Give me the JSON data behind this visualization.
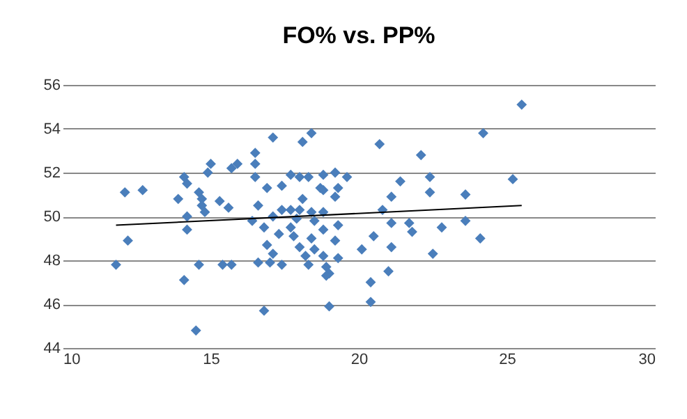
{
  "chart_data": {
    "type": "scatter",
    "title": "FO% vs. PP%",
    "xlim": [
      10,
      30
    ],
    "xticks": [
      10,
      15,
      20,
      25,
      30
    ],
    "ylim": [
      44,
      56
    ],
    "yticks": [
      44,
      46,
      48,
      50,
      52,
      54,
      56
    ],
    "grid": "y",
    "series": [
      {
        "marker": "diamond",
        "color": "#4a7ebb",
        "x": [
          11.8,
          12.1,
          12.7,
          12.2,
          13.9,
          14.1,
          14.2,
          14.2,
          14.2,
          14.1,
          14.5,
          14.6,
          14.7,
          14.7,
          14.8,
          14.6,
          14.9,
          15.0,
          15.3,
          15.6,
          15.4,
          15.7,
          15.7,
          15.9,
          16.5,
          16.5,
          16.5,
          16.6,
          16.4,
          16.8,
          16.6,
          16.8,
          16.9,
          17.1,
          18.4,
          18.1,
          17.4,
          17.7,
          18.0,
          18.3,
          18.8,
          19.2,
          19.6,
          18.7,
          18.8,
          19.3,
          19.2,
          18.1,
          17.4,
          17.7,
          18.0,
          18.4,
          18.8,
          17.1,
          17.9,
          18.5,
          19.3,
          17.7,
          18.8,
          17.3,
          17.8,
          18.4,
          19.2,
          20.5,
          16.9,
          18.0,
          18.5,
          17.1,
          18.2,
          18.8,
          19.3,
          20.1,
          17.0,
          17.4,
          18.3,
          18.9,
          19.0,
          18.9,
          20.4,
          21.0,
          19.0,
          20.4,
          20.7,
          21.1,
          21.1,
          21.4,
          22.1,
          22.4,
          22.4,
          20.8,
          21.7,
          21.1,
          21.8,
          22.8,
          22.5,
          23.6,
          23.6,
          24.1,
          24.2,
          25.2,
          25.5
        ],
        "values": [
          47.8,
          51.1,
          51.2,
          48.9,
          50.8,
          51.8,
          51.5,
          50.0,
          49.4,
          47.1,
          44.8,
          51.1,
          50.8,
          50.5,
          50.2,
          47.8,
          52.0,
          52.4,
          50.7,
          50.4,
          47.8,
          47.8,
          52.2,
          52.4,
          52.9,
          52.4,
          51.8,
          50.5,
          49.8,
          49.5,
          47.9,
          45.7,
          51.3,
          53.6,
          53.8,
          53.4,
          51.4,
          51.9,
          51.8,
          51.8,
          51.9,
          52.0,
          51.8,
          51.3,
          51.2,
          51.3,
          50.9,
          50.8,
          50.3,
          50.3,
          50.3,
          50.2,
          50.2,
          50.0,
          49.9,
          49.8,
          49.6,
          49.5,
          49.4,
          49.2,
          49.1,
          49.0,
          48.9,
          49.1,
          48.7,
          48.6,
          48.5,
          48.3,
          48.2,
          48.2,
          48.1,
          48.5,
          47.9,
          47.8,
          47.8,
          47.7,
          47.4,
          47.3,
          47.0,
          47.5,
          45.9,
          46.1,
          53.3,
          50.9,
          49.7,
          51.6,
          52.8,
          51.8,
          51.1,
          50.3,
          49.7,
          48.6,
          49.3,
          49.5,
          48.3,
          51.0,
          49.8,
          49.0,
          53.8,
          51.7,
          55.1
        ]
      },
      {
        "type": "line",
        "marker": "none",
        "color": "#000000",
        "x": [
          11.8,
          25.5
        ],
        "values": [
          49.6,
          50.5
        ]
      }
    ]
  }
}
